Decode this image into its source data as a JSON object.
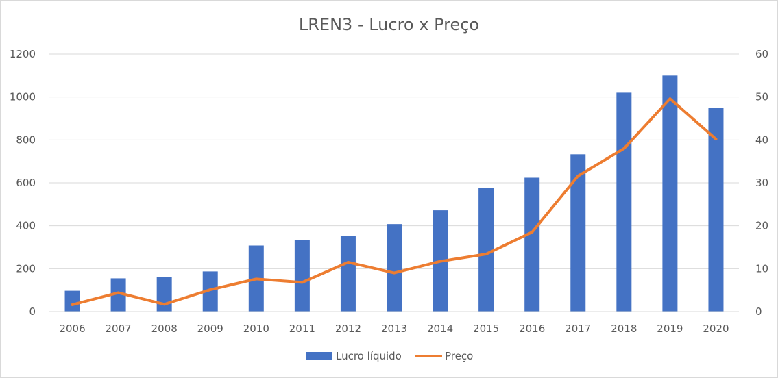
{
  "chart_data": {
    "type": "bar",
    "title": "LREN3 - Lucro x Preço",
    "categories": [
      "2006",
      "2007",
      "2008",
      "2009",
      "2010",
      "2011",
      "2012",
      "2013",
      "2014",
      "2015",
      "2016",
      "2017",
      "2018",
      "2019",
      "2020"
    ],
    "series": [
      {
        "name": "Lucro líquido",
        "type": "bar",
        "axis": "left",
        "color": "#4472c4",
        "values": [
          97,
          155,
          160,
          187,
          308,
          334,
          354,
          408,
          472,
          577,
          624,
          733,
          1020,
          1100,
          950
        ]
      },
      {
        "name": "Preço",
        "type": "line",
        "axis": "right",
        "color": "#ed7d31",
        "values": [
          1.6,
          4.4,
          1.7,
          5.1,
          7.6,
          6.8,
          11.5,
          9.0,
          11.7,
          13.4,
          18.5,
          31.6,
          38.0,
          49.6,
          40.2
        ]
      }
    ],
    "y_left": {
      "min": 0,
      "max": 1200,
      "ticks": [
        "0",
        "200",
        "400",
        "600",
        "800",
        "1000",
        "1200"
      ]
    },
    "y_right": {
      "min": 0,
      "max": 60,
      "ticks": [
        "0",
        "10",
        "20",
        "30",
        "40",
        "50",
        "60"
      ]
    },
    "grid": true,
    "legend_position": "bottom"
  }
}
